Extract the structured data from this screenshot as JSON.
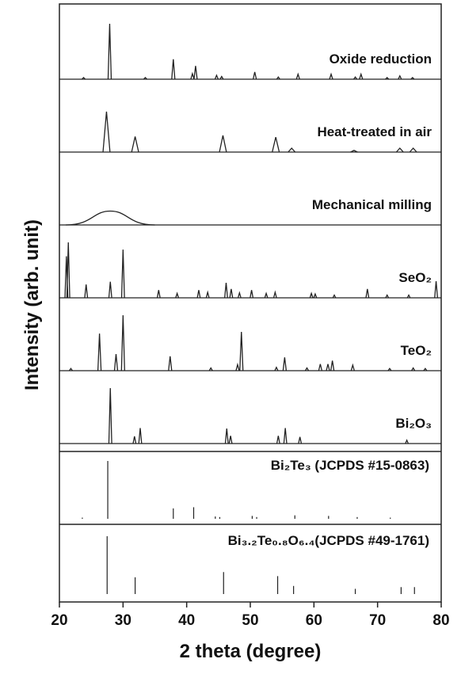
{
  "chart_data": {
    "type": "xrd",
    "xlabel": "2 theta (degree)",
    "ylabel": "Intensity (arb. unit)",
    "xlim": [
      20,
      80
    ],
    "xticks": [
      20,
      30,
      40,
      50,
      60,
      70,
      80
    ],
    "color": "#222222",
    "series": [
      {
        "name": "Oxide reduction",
        "peak_width": 0.5,
        "x": [
          23.8,
          27.9,
          33.5,
          37.9,
          40.9,
          41.4,
          44.7,
          45.5,
          50.7,
          54.4,
          57.5,
          62.7,
          66.5,
          67.4,
          71.5,
          73.5,
          75.5
        ],
        "values": [
          3,
          100,
          3,
          36,
          10,
          24,
          7,
          5,
          13,
          4,
          9,
          9,
          4,
          9,
          3,
          6,
          3
        ]
      },
      {
        "name": "Heat-treated in air",
        "peak_width": 1.1,
        "x": [
          27.4,
          31.9,
          45.7,
          54.0,
          56.5,
          66.3,
          73.5,
          75.6
        ],
        "values": [
          73,
          28,
          30,
          27,
          7,
          3,
          7,
          7
        ]
      },
      {
        "name": "Mechanical milling",
        "peak_width": 14,
        "x": [
          28.0
        ],
        "values": [
          25
        ]
      },
      {
        "name": "SeO₂",
        "peak_width": 0.45,
        "x": [
          21.1,
          21.4,
          24.2,
          28.0,
          30.0,
          35.6,
          38.5,
          41.9,
          43.3,
          46.2,
          47.0,
          48.3,
          50.2,
          52.5,
          53.9,
          59.6,
          60.2,
          63.2,
          68.4,
          71.5,
          74.9,
          79.2
        ],
        "values": [
          75,
          100,
          24,
          29,
          87,
          14,
          8,
          14,
          10,
          27,
          16,
          9,
          14,
          8,
          10,
          8,
          7,
          5,
          16,
          5,
          5,
          30
        ]
      },
      {
        "name": "TeO₂",
        "peak_width": 0.5,
        "x": [
          21.8,
          26.3,
          28.9,
          30.0,
          37.4,
          43.8,
          48.0,
          48.6,
          54.1,
          55.4,
          58.9,
          61.0,
          62.2,
          62.9,
          66.1,
          71.9,
          75.6,
          77.5
        ],
        "values": [
          4,
          67,
          30,
          100,
          26,
          5,
          11,
          70,
          6,
          24,
          5,
          12,
          12,
          18,
          10,
          4,
          5,
          4
        ]
      },
      {
        "name": "Bi₂O₃",
        "peak_width": 0.45,
        "x": [
          28.0,
          31.8,
          32.7,
          46.3,
          46.9,
          54.4,
          55.5,
          57.8,
          74.6
        ],
        "values": [
          100,
          13,
          28,
          27,
          14,
          14,
          28,
          12,
          6
        ]
      }
    ],
    "references": [
      {
        "name": "Bi₂Te₃ (JCPDS #15-0863)",
        "x": [
          23.6,
          27.6,
          37.9,
          41.1,
          44.5,
          45.2,
          50.3,
          51.0,
          57.0,
          62.3,
          66.8,
          72.0
        ],
        "values": [
          2,
          100,
          18,
          20,
          4,
          3,
          5,
          3,
          6,
          5,
          3,
          2
        ]
      },
      {
        "name": "Bi₃.₂Te₀.₈O₆.₄(JCPDS #49-1761)",
        "x": [
          27.5,
          31.9,
          45.8,
          54.3,
          56.8,
          66.5,
          73.7,
          75.8
        ],
        "values": [
          100,
          29,
          38,
          31,
          14,
          9,
          12,
          12
        ]
      }
    ]
  }
}
